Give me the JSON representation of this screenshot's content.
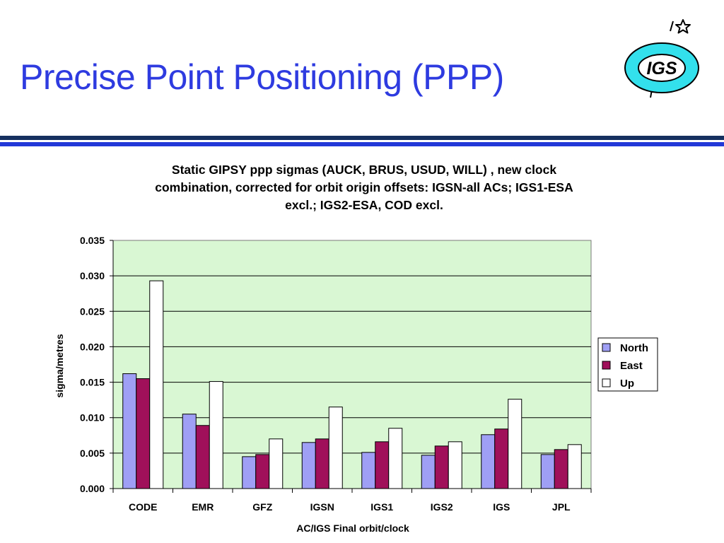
{
  "slide": {
    "title": "Precise Point Positioning (PPP)",
    "logo_text": "IGS",
    "colors": {
      "title": "#2e3be0",
      "rule_dark": "#15305f",
      "rule_blue": "#2238d8",
      "logo_ring": "#33e0ec"
    }
  },
  "chart_data": {
    "type": "bar",
    "title_lines": [
      "Static GIPSY ppp sigmas (AUCK, BRUS, USUD, WILL) , new clock",
      "combination, corrected for orbit origin offsets: IGSN-all ACs; IGS1-ESA",
      "excl.; IGS2-ESA, COD excl."
    ],
    "xlabel": "AC/IGS Final  orbit/clock",
    "ylabel": "sigma/metres",
    "ylim": [
      0,
      0.035
    ],
    "yticks": [
      "0.000",
      "0.005",
      "0.010",
      "0.015",
      "0.020",
      "0.025",
      "0.030",
      "0.035"
    ],
    "categories": [
      "CODE",
      "EMR",
      "GFZ",
      "IGSN",
      "IGS1",
      "IGS2",
      "IGS",
      "JPL"
    ],
    "series": [
      {
        "name": "North",
        "color": "#9f9ff5",
        "values": [
          0.0162,
          0.0105,
          0.0045,
          0.0065,
          0.0051,
          0.0047,
          0.0076,
          0.0048
        ]
      },
      {
        "name": "East",
        "color": "#a0105a",
        "values": [
          0.0155,
          0.0089,
          0.0048,
          0.007,
          0.0066,
          0.006,
          0.0084,
          0.0055
        ]
      },
      {
        "name": "Up",
        "color": "#ffffff",
        "values": [
          0.0293,
          0.0151,
          0.007,
          0.0115,
          0.0085,
          0.0066,
          0.0126,
          0.0062
        ]
      }
    ],
    "grid": true,
    "plot_background": "#d9f7d3",
    "legend_position": "right"
  }
}
